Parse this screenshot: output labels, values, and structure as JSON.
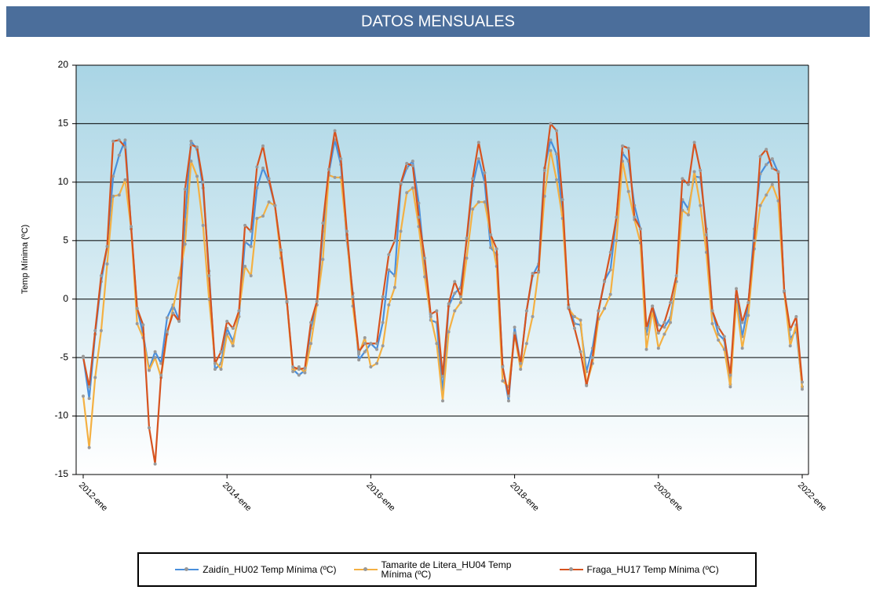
{
  "chart_data": {
    "type": "line",
    "title": "DATOS MENSUALES",
    "y_label": "Temp Mínima (ºC)",
    "categories": [
      "2012-ene",
      null,
      null,
      null,
      null,
      null,
      null,
      null,
      null,
      null,
      null,
      null,
      null,
      null,
      null,
      null,
      null,
      null,
      null,
      null,
      null,
      null,
      null,
      null,
      "2014-ene",
      null,
      null,
      null,
      null,
      null,
      null,
      null,
      null,
      null,
      null,
      null,
      null,
      null,
      null,
      null,
      null,
      null,
      null,
      null,
      null,
      null,
      null,
      null,
      "2016-ene",
      null,
      null,
      null,
      null,
      null,
      null,
      null,
      null,
      null,
      null,
      null,
      null,
      null,
      null,
      null,
      null,
      null,
      null,
      null,
      null,
      null,
      null,
      null,
      "2018-ene",
      null,
      null,
      null,
      null,
      null,
      null,
      null,
      null,
      null,
      null,
      null,
      null,
      null,
      null,
      null,
      null,
      null,
      null,
      null,
      null,
      null,
      null,
      null,
      "2020-ene",
      null,
      null,
      null,
      null,
      null,
      null,
      null,
      null,
      null,
      null,
      null,
      null,
      null,
      null,
      null,
      null,
      null,
      null,
      null,
      null,
      null,
      null,
      null,
      "2022-ene"
    ],
    "series": [
      {
        "name": "Zaidín_HU02 Temp Mínima (ºC)",
        "color": "#4a8fdc",
        "values": [
          -4.9,
          -8.5,
          -3,
          1.5,
          4.5,
          10.5,
          12.3,
          13.6,
          6,
          -0.8,
          -3,
          -6,
          -4.5,
          -5.5,
          -1.6,
          -0.5,
          -1.8,
          6.8,
          13.5,
          12.8,
          9.5,
          2.4,
          -6,
          -5.5,
          -2.5,
          -3.6,
          -1.5,
          4.9,
          4.5,
          9.5,
          11.2,
          10,
          8,
          4,
          -0.2,
          -6,
          -6.5,
          -6.1,
          -2.5,
          -0.5,
          5.8,
          10.8,
          13.6,
          11.5,
          5,
          0.5,
          -5.2,
          -4.5,
          -3.8,
          -4.3,
          -2,
          2.5,
          2,
          9.8,
          11.2,
          11.8,
          8.2,
          2.8,
          -1.8,
          -2,
          -8,
          -0.6,
          0.5,
          1,
          5,
          9.7,
          12,
          10,
          4.4,
          3.8,
          -5.7,
          -8.7,
          -2.4,
          -5.6,
          -1,
          2,
          3,
          11.2,
          13.6,
          12.4,
          7.2,
          -0.5,
          -2.1,
          -2.2,
          -6.2,
          -4.2,
          -1,
          1.6,
          2.5,
          7,
          12.5,
          11.8,
          8,
          6,
          -3,
          -0.6,
          -2.2,
          -2.4,
          -1.6,
          1.5,
          8.5,
          7.7,
          10.5,
          10.4,
          6,
          -1,
          -3,
          -3.5,
          -7.3,
          0.3,
          -3.2,
          -0.5,
          6,
          10.7,
          11.5,
          12,
          10.8,
          0.7,
          -3.4,
          -2.7,
          -7.5
        ]
      },
      {
        "name": "Tamarite de Litera_HU04 Temp Mínima (ºC)",
        "color": "#f4b042",
        "values": [
          -8.3,
          -12.7,
          -6.7,
          -2.7,
          3,
          8.8,
          8.9,
          10.2,
          6,
          -2.1,
          -3.3,
          -6.1,
          -5,
          -6.7,
          -3,
          -0.8,
          1.8,
          4.7,
          11.8,
          10.5,
          6.3,
          0,
          -5.3,
          -6,
          -3,
          -4,
          -1,
          2.8,
          2,
          6.9,
          7.1,
          8.3,
          8,
          3.5,
          -0.3,
          -6.2,
          -5.8,
          -6.3,
          -3.8,
          -0.5,
          3.4,
          10.6,
          10.4,
          10.4,
          5.5,
          -0.6,
          -4.7,
          -3.3,
          -5.8,
          -5.5,
          -4,
          -0.5,
          1,
          5.8,
          9.1,
          9.5,
          6.2,
          1.9,
          -1.5,
          -3.8,
          -8.7,
          -2.8,
          -1,
          -0.3,
          3.5,
          7.7,
          8.3,
          8.3,
          5.5,
          2.8,
          -7,
          -7.5,
          -3,
          -6,
          -3.8,
          -1.5,
          2.4,
          8.8,
          12.7,
          10.2,
          6.9,
          -0.8,
          -1.5,
          -1.8,
          -7.3,
          -5.5,
          -1.7,
          -0.8,
          0.4,
          5,
          11.8,
          9.2,
          6.8,
          4.8,
          -4.3,
          -1,
          -4.2,
          -3,
          -2,
          1.5,
          7.6,
          7.2,
          10.9,
          8,
          4,
          -2.1,
          -3.5,
          -4.3,
          -7.5,
          -0.2,
          -4.2,
          -1.4,
          4.3,
          8,
          8.9,
          9.8,
          8.4,
          0.6,
          -4,
          -2.2,
          -7.7
        ]
      },
      {
        "name": "Fraga_HU17 Temp Mínima (ºC)",
        "color": "#d6531f",
        "values": [
          -5,
          -7.5,
          -2.7,
          2,
          4.5,
          13.5,
          13.6,
          13,
          6.2,
          -0.8,
          -2.2,
          -11,
          -14.1,
          -6.5,
          -2.8,
          -1.2,
          -1.9,
          9.4,
          13.2,
          13,
          10,
          2,
          -5.5,
          -4.5,
          -1.9,
          -2.5,
          -1,
          6.3,
          5.8,
          11.3,
          13.1,
          10.3,
          8,
          4.2,
          -0.2,
          -5.8,
          -6,
          -5.9,
          -2,
          -0.2,
          6.5,
          11.1,
          14.4,
          12,
          5.8,
          0.2,
          -4.5,
          -3.8,
          -3.8,
          -3.8,
          0.2,
          3.8,
          5,
          9.9,
          11.6,
          11.4,
          7,
          3.5,
          -1.3,
          -1,
          -6.6,
          -0.4,
          1.5,
          0.2,
          5.2,
          10.3,
          13.4,
          10.8,
          5.5,
          4.3,
          -5.8,
          -8.3,
          -2.9,
          -5.5,
          -1,
          2.2,
          2.3,
          11,
          15,
          14.4,
          8.5,
          -0.7,
          -2.5,
          -4.5,
          -7.4,
          -5,
          -1,
          1.5,
          4,
          7,
          13.1,
          12.9,
          7,
          6,
          -2.5,
          -0.6,
          -2.9,
          -2,
          -0.3,
          2,
          10.3,
          9.8,
          13.4,
          11,
          5.5,
          -1,
          -2.4,
          -3.2,
          -6.5,
          0.9,
          -2,
          -0.3,
          5,
          12.2,
          12.8,
          11.2,
          10.9,
          0.7,
          -2.6,
          -1.5,
          -7.1
        ]
      }
    ],
    "ylim": [
      -15,
      20
    ],
    "yticks": [
      -15,
      -10,
      -5,
      0,
      5,
      10,
      15,
      20
    ],
    "grid": true
  }
}
